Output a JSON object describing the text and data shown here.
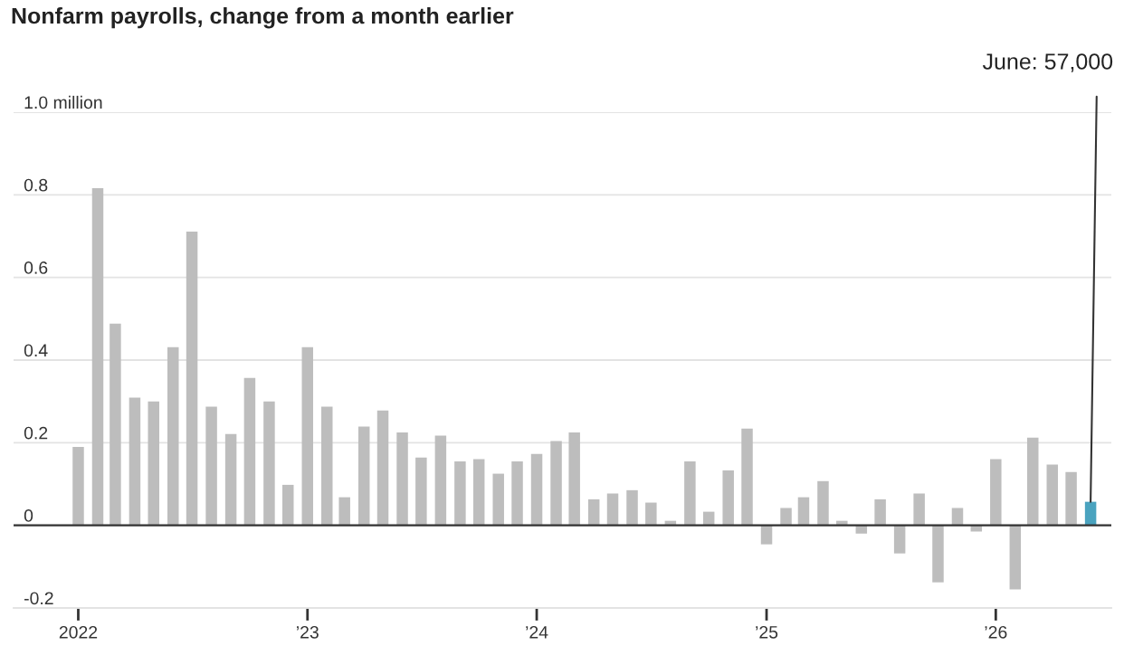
{
  "chart_data": {
    "type": "bar",
    "title": "Nonfarm payrolls, change from a month earlier",
    "x": [
      "2022-01",
      "2022-02",
      "2022-03",
      "2022-04",
      "2022-05",
      "2022-06",
      "2022-07",
      "2022-08",
      "2022-09",
      "2022-10",
      "2022-11",
      "2022-12",
      "2023-01",
      "2023-02",
      "2023-03",
      "2023-04",
      "2023-05",
      "2023-06",
      "2023-07",
      "2023-08",
      "2023-09",
      "2023-10",
      "2023-11",
      "2023-12",
      "2024-01",
      "2024-02",
      "2024-03",
      "2024-04",
      "2024-05",
      "2024-06",
      "2024-07",
      "2024-08",
      "2024-09",
      "2024-10",
      "2024-11",
      "2024-12",
      "2025-01",
      "2025-02",
      "2025-03",
      "2025-04",
      "2025-05",
      "2025-06",
      "2025-07",
      "2025-08",
      "2025-09",
      "2025-10",
      "2025-11",
      "2025-12",
      "2026-01",
      "2026-02",
      "2026-03",
      "2026-04",
      "2026-05",
      "2026-06"
    ],
    "values": [
      0.19,
      0.816,
      0.488,
      0.309,
      0.3,
      0.431,
      0.711,
      0.287,
      0.221,
      0.357,
      0.3,
      0.098,
      0.431,
      0.287,
      0.068,
      0.239,
      0.278,
      0.225,
      0.164,
      0.217,
      0.155,
      0.16,
      0.125,
      0.155,
      0.173,
      0.204,
      0.225,
      0.063,
      0.077,
      0.085,
      0.055,
      0.011,
      0.155,
      0.033,
      0.133,
      0.234,
      -0.046,
      0.042,
      0.068,
      0.107,
      0.011,
      -0.02,
      0.063,
      -0.068,
      0.077,
      -0.138,
      0.042,
      -0.015,
      0.16,
      -0.155,
      0.212,
      0.147,
      0.129,
      0.057
    ],
    "colors": [
      "#bdbdbd",
      "#bdbdbd",
      "#bdbdbd",
      "#bdbdbd",
      "#bdbdbd",
      "#bdbdbd",
      "#bdbdbd",
      "#bdbdbd",
      "#bdbdbd",
      "#bdbdbd",
      "#bdbdbd",
      "#bdbdbd",
      "#bdbdbd",
      "#bdbdbd",
      "#bdbdbd",
      "#bdbdbd",
      "#bdbdbd",
      "#bdbdbd",
      "#bdbdbd",
      "#bdbdbd",
      "#bdbdbd",
      "#bdbdbd",
      "#bdbdbd",
      "#bdbdbd",
      "#bdbdbd",
      "#bdbdbd",
      "#bdbdbd",
      "#bdbdbd",
      "#bdbdbd",
      "#bdbdbd",
      "#bdbdbd",
      "#bdbdbd",
      "#bdbdbd",
      "#bdbdbd",
      "#bdbdbd",
      "#bdbdbd",
      "#bdbdbd",
      "#bdbdbd",
      "#bdbdbd",
      "#bdbdbd",
      "#bdbdbd",
      "#bdbdbd",
      "#bdbdbd",
      "#bdbdbd",
      "#bdbdbd",
      "#bdbdbd",
      "#bdbdbd",
      "#bdbdbd",
      "#bdbdbd",
      "#bdbdbd",
      "#bdbdbd",
      "#bdbdbd",
      "#bdbdbd",
      "#4aa3bf"
    ],
    "xlim": [
      "2021-09-20",
      "2026-07-04"
    ],
    "xticks": [
      {
        "value": "2022-01",
        "label": "2022"
      },
      {
        "value": "2023-01",
        "label": "’23"
      },
      {
        "value": "2024-01",
        "label": "’24"
      },
      {
        "value": "2025-01",
        "label": "’25"
      },
      {
        "value": "2026-01",
        "label": "’26"
      }
    ],
    "ylim": [
      -0.2,
      1.0
    ],
    "yticks": [
      {
        "value": -0.2,
        "label": "-0.2"
      },
      0,
      0.2,
      0.4,
      0.6,
      0.8,
      {
        "value": 1.0,
        "label": "1.0 million"
      }
    ],
    "grid": "y",
    "ref_lines": [
      {
        "axis": "y",
        "value": 0,
        "label": null,
        "color": "#333333"
      }
    ],
    "annotations": [
      {
        "text": "June: 57,000",
        "x": "2026-06",
        "y": 0.057
      }
    ]
  }
}
